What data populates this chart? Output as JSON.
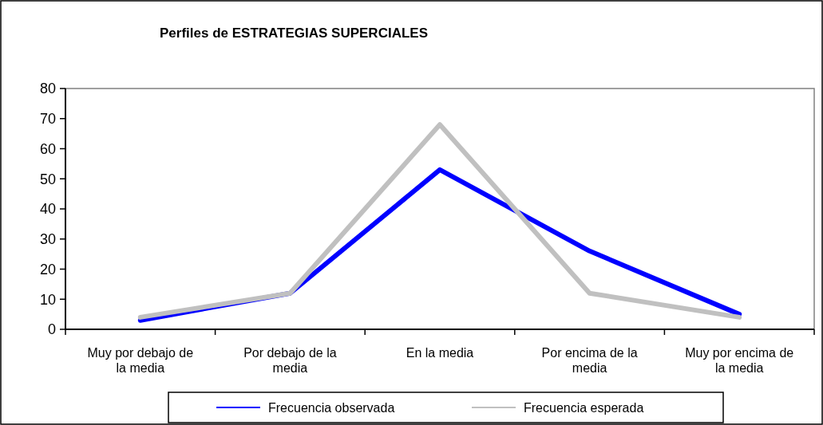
{
  "chart_data": {
    "type": "line",
    "title": "Perfiles de ESTRATEGIAS  SUPERCIALES",
    "categories": [
      "Muy por debajo de la media",
      "Por debajo de la media",
      "En la media",
      "Por encima de la media",
      "Muy por encima de la media"
    ],
    "series": [
      {
        "name": "Frecuencia observada",
        "color": "#0000ff",
        "values": [
          3,
          12,
          53,
          26,
          5
        ]
      },
      {
        "name": "Frecuencia esperada",
        "color": "#c0c0c0",
        "values": [
          4,
          12,
          68,
          12,
          4
        ]
      }
    ],
    "ylim": [
      0,
      80
    ],
    "yticks": [
      0,
      10,
      20,
      30,
      40,
      50,
      60,
      70,
      80
    ],
    "grid": false,
    "legend": "bottom",
    "marker": "none",
    "line_style": "solid"
  }
}
